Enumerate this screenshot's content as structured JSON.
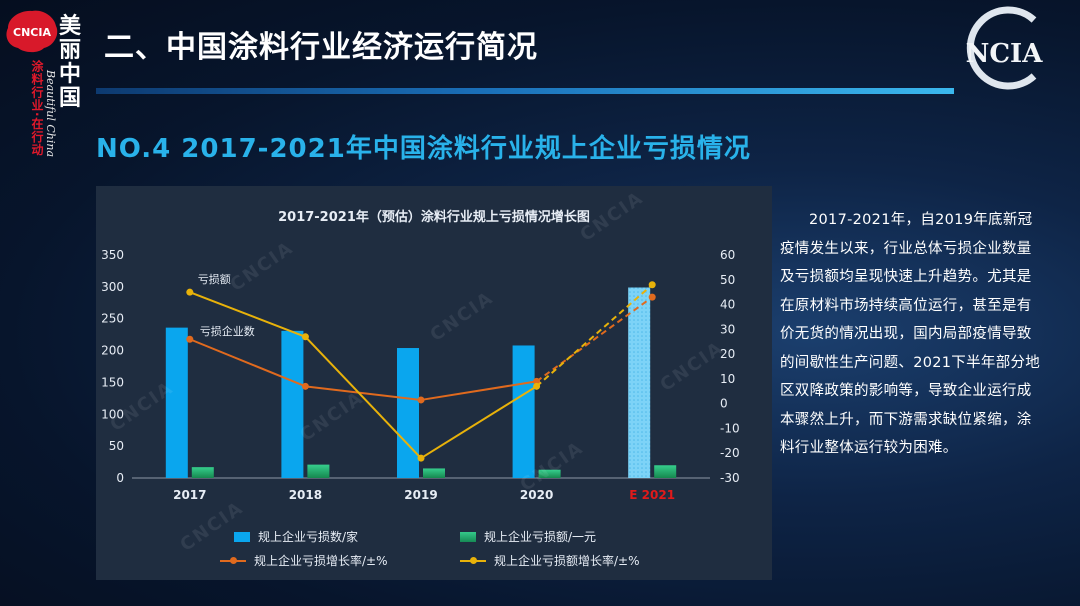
{
  "brand": {
    "chinese_vertical": [
      "美",
      "丽",
      "中",
      "国"
    ],
    "red_text": "涂料行业·在行动",
    "script_text": "Beautiful China",
    "logo_left_text": "CNCIA",
    "logo_right_text": "NCIA"
  },
  "page_title": "二、中国涂料行业经济运行简况",
  "section_title": "NO.4 2017-2021年中国涂料行业规上企业亏损情况",
  "watermark": "CNCIA",
  "colors": {
    "bar_count": "#0aa6ee",
    "bar_amount": "#1ea86a",
    "line_count_rate": "#e06a1e",
    "line_amount_rate": "#e8b20a",
    "estimate_label": "#e01a1a",
    "section_title": "#29b2ea",
    "panel_bg": "#1f2d40"
  },
  "chart_data": {
    "type": "bar",
    "title": "2017-2021年（预估）涂料行业规上亏损情况增长图",
    "categories": [
      "2017",
      "2018",
      "2019",
      "2020",
      "E 2021"
    ],
    "estimate_category_index": 4,
    "y_left": {
      "ylim": [
        0,
        350
      ],
      "ticks": [
        "0",
        "50",
        "100",
        "150",
        "200",
        "250",
        "300",
        "350"
      ]
    },
    "y_right": {
      "ylim": [
        -30,
        60
      ],
      "ticks": [
        "-30",
        "-20",
        "-10",
        "0",
        "10",
        "20",
        "30",
        "40",
        "50",
        "60"
      ]
    },
    "series": [
      {
        "name": "规上企业亏损数/家",
        "kind": "bar",
        "axis": "left",
        "values": [
          236,
          231,
          204,
          208,
          299
        ]
      },
      {
        "name": "规上企业亏损额/一元",
        "kind": "bar",
        "axis": "left",
        "values": [
          17,
          21,
          15,
          13,
          20
        ]
      },
      {
        "name": "规上企业亏损增长率/±%",
        "kind": "line",
        "axis": "right",
        "values": [
          26,
          7,
          1.5,
          9,
          43
        ],
        "dashed_last_segment": true
      },
      {
        "name": "规上企业亏损额增长率/±%",
        "kind": "line",
        "axis": "right",
        "values": [
          45,
          27,
          -22,
          7,
          48
        ],
        "dashed_last_segment": true
      }
    ],
    "annotations": [
      {
        "text": "亏损额",
        "series_index": 3
      },
      {
        "text": "亏损企业数",
        "series_index": 2
      }
    ],
    "legend_position": "bottom",
    "grid": false
  },
  "description": "2017-2021年，自2019年底新冠疫情发生以来，行业总体亏损企业数量及亏损额均呈现快速上升趋势。尤其是在原材料市场持续高位运行，甚至是有价无货的情况出现，国内局部疫情导致的间歇性生产问题、2021下半年部分地区双降政策的影响等，导致企业运行成本骤然上升，而下游需求缺位紧缩，涂料行业整体运行较为困难。"
}
